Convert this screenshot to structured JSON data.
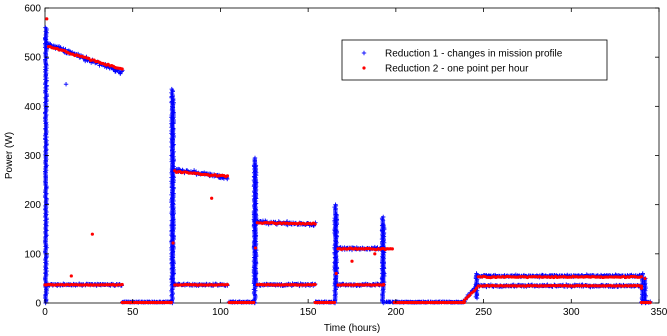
{
  "chart_data": {
    "type": "scatter",
    "title": "",
    "xlabel": "Time (hours)",
    "ylabel": "Power (W)",
    "xlim": [
      0,
      350
    ],
    "ylim": [
      0,
      600
    ],
    "xticks": [
      0,
      50,
      100,
      150,
      200,
      250,
      300,
      350
    ],
    "yticks": [
      0,
      100,
      200,
      300,
      400,
      500,
      600
    ],
    "grid": false,
    "legend_position": "top-right",
    "series": [
      {
        "name": "Reduction 1  - changes in mission profile",
        "color": "#0000ff",
        "marker": "plus",
        "segments": [
          {
            "x": [
              0,
              2
            ],
            "y": [
              538,
              525
            ],
            "jitter": 6
          },
          {
            "x": [
              2,
              44
            ],
            "y": [
              525,
              470
            ],
            "jitter": 6
          },
          {
            "x": [
              0,
              44
            ],
            "y": [
              37,
              37
            ],
            "jitter": 3
          },
          {
            "x": [
              44,
              72
            ],
            "y": [
              2,
              2
            ],
            "jitter": 1
          },
          {
            "x": [
              73,
              104
            ],
            "y": [
              272,
              255
            ],
            "jitter": 5
          },
          {
            "x": [
              73,
              104
            ],
            "y": [
              37,
              37
            ],
            "jitter": 3
          },
          {
            "x": [
              105,
              119
            ],
            "y": [
              2,
              2
            ],
            "jitter": 1
          },
          {
            "x": [
              120,
              154
            ],
            "y": [
              165,
              160
            ],
            "jitter": 5
          },
          {
            "x": [
              120,
              154
            ],
            "y": [
              37,
              37
            ],
            "jitter": 3
          },
          {
            "x": [
              154,
              165
            ],
            "y": [
              2,
              2
            ],
            "jitter": 1
          },
          {
            "x": [
              166,
              193
            ],
            "y": [
              112,
              110
            ],
            "jitter": 4
          },
          {
            "x": [
              166,
              193
            ],
            "y": [
              37,
              37
            ],
            "jitter": 3
          },
          {
            "x": [
              194,
              239
            ],
            "y": [
              2,
              2
            ],
            "jitter": 1
          },
          {
            "x": [
              239,
              246
            ],
            "y": [
              5,
              35
            ],
            "jitter": 3
          },
          {
            "x": [
              246,
              340
            ],
            "y": [
              55,
              55
            ],
            "jitter": 3
          },
          {
            "x": [
              246,
              340
            ],
            "y": [
              35,
              35
            ],
            "jitter": 3
          },
          {
            "x": [
              340,
              345
            ],
            "y": [
              2,
              2
            ],
            "jitter": 1
          }
        ],
        "spikes": [
          {
            "x": 0.5,
            "y0": 0,
            "y1": 560
          },
          {
            "x": 72.5,
            "y0": 0,
            "y1": 435
          },
          {
            "x": 73.0,
            "y0": 40,
            "y1": 420
          },
          {
            "x": 119.5,
            "y0": 0,
            "y1": 295
          },
          {
            "x": 120.0,
            "y0": 40,
            "y1": 280
          },
          {
            "x": 165.5,
            "y0": 0,
            "y1": 200
          },
          {
            "x": 166.0,
            "y0": 40,
            "y1": 180
          },
          {
            "x": 192.5,
            "y0": 0,
            "y1": 175
          },
          {
            "x": 193.0,
            "y0": 40,
            "y1": 160
          },
          {
            "x": 246.0,
            "y0": 10,
            "y1": 60
          },
          {
            "x": 340.5,
            "y0": 0,
            "y1": 60
          },
          {
            "x": 342.0,
            "y0": 0,
            "y1": 50
          }
        ],
        "points": [
          {
            "x": 12,
            "y": 445
          },
          {
            "x": 8,
            "y": 522
          },
          {
            "x": 100,
            "y": 258
          },
          {
            "x": 175,
            "y": 108
          }
        ]
      },
      {
        "name": "Reduction 2 - one point per hour",
        "color": "#ff0000",
        "marker": "dot",
        "segments": [
          {
            "x": [
              2,
              44
            ],
            "y": [
              522,
              475
            ],
            "jitter": 3
          },
          {
            "x": [
              0,
              44
            ],
            "y": [
              37,
              37
            ],
            "jitter": 1
          },
          {
            "x": [
              44,
              72
            ],
            "y": [
              1,
              1
            ],
            "jitter": 0
          },
          {
            "x": [
              74,
              104
            ],
            "y": [
              268,
              257
            ],
            "jitter": 3
          },
          {
            "x": [
              74,
              104
            ],
            "y": [
              37,
              37
            ],
            "jitter": 1
          },
          {
            "x": [
              105,
              119
            ],
            "y": [
              1,
              1
            ],
            "jitter": 0
          },
          {
            "x": [
              121,
              154
            ],
            "y": [
              163,
              161
            ],
            "jitter": 2
          },
          {
            "x": [
              121,
              154
            ],
            "y": [
              37,
              37
            ],
            "jitter": 1
          },
          {
            "x": [
              154,
              165
            ],
            "y": [
              1,
              1
            ],
            "jitter": 0
          },
          {
            "x": [
              167,
              198
            ],
            "y": [
              110,
              110
            ],
            "jitter": 2
          },
          {
            "x": [
              167,
              193
            ],
            "y": [
              37,
              37
            ],
            "jitter": 1
          },
          {
            "x": [
              199,
              239
            ],
            "y": [
              1,
              1
            ],
            "jitter": 0
          },
          {
            "x": [
              239,
              246
            ],
            "y": [
              5,
              30
            ],
            "jitter": 2
          },
          {
            "x": [
              247,
              340
            ],
            "y": [
              53,
              53
            ],
            "jitter": 2
          },
          {
            "x": [
              247,
              340
            ],
            "y": [
              35,
              35
            ],
            "jitter": 1
          },
          {
            "x": [
              340,
              345
            ],
            "y": [
              1,
              1
            ],
            "jitter": 0
          }
        ],
        "spikes": [],
        "points": [
          {
            "x": 1,
            "y": 578
          },
          {
            "x": 27,
            "y": 140
          },
          {
            "x": 15,
            "y": 55
          },
          {
            "x": 73,
            "y": 122
          },
          {
            "x": 95,
            "y": 213
          },
          {
            "x": 120,
            "y": 112
          },
          {
            "x": 166,
            "y": 60
          },
          {
            "x": 175,
            "y": 85
          },
          {
            "x": 188,
            "y": 100
          },
          {
            "x": 193,
            "y": 38
          },
          {
            "x": 340,
            "y": 30
          },
          {
            "x": 342,
            "y": 50
          }
        ]
      }
    ]
  }
}
